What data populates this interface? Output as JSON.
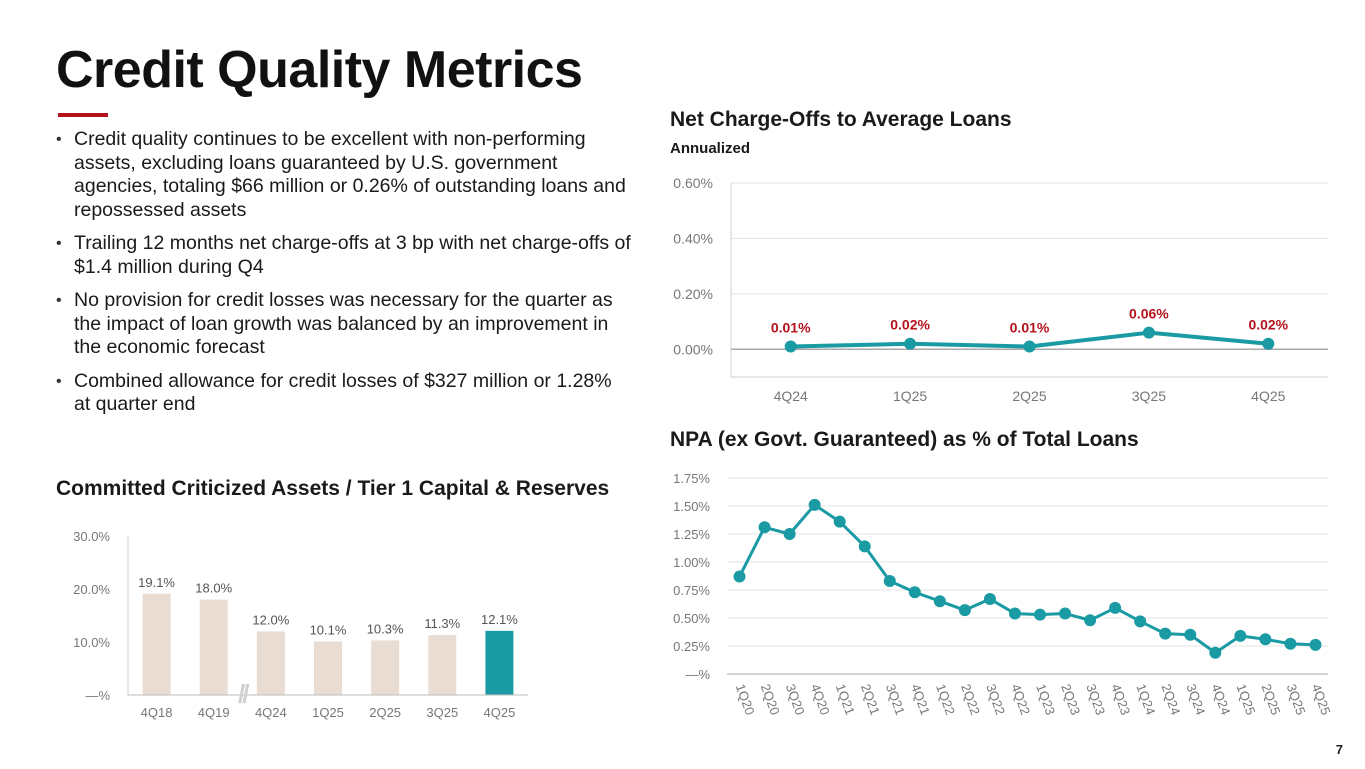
{
  "page": {
    "title": "Credit Quality Metrics",
    "page_number": "7"
  },
  "colors": {
    "accent_red": "#b5121b",
    "teal": "#1a9aa3",
    "beige": "#e9ddd3",
    "label_red": "#b5121b",
    "axis_gray": "#777777"
  },
  "bullets": [
    "Credit quality continues to be excellent with non-performing assets, excluding loans guaranteed by U.S. government agencies, totaling $66 million or 0.26% of outstanding loans and repossessed assets",
    "Trailing 12 months net charge-offs at 3 bp with net charge-offs of $1.4 million during Q4",
    "No provision for credit losses was necessary for the quarter as the impact of loan growth was balanced by an improvement in the economic forecast",
    "Combined allowance for credit losses of $327 million or 1.28% at quarter end"
  ],
  "chart_data": [
    {
      "id": "nco",
      "type": "line",
      "title": "Net Charge-Offs to Average Loans",
      "subtitle": "Annualized",
      "categories": [
        "4Q24",
        "1Q25",
        "2Q25",
        "3Q25",
        "4Q25"
      ],
      "values": [
        0.01,
        0.02,
        0.01,
        0.06,
        0.02
      ],
      "data_labels": [
        "0.01%",
        "0.02%",
        "0.01%",
        "0.06%",
        "0.02%"
      ],
      "ylim": [
        -0.1,
        0.6
      ],
      "yticks": [
        0.0,
        0.2,
        0.4,
        0.6
      ],
      "ytick_labels": [
        "0.00%",
        "0.20%",
        "0.40%",
        "0.60%"
      ],
      "grid": true
    },
    {
      "id": "npa",
      "type": "line",
      "title": "NPA (ex Govt. Guaranteed) as % of Total Loans",
      "categories": [
        "1Q20",
        "2Q20",
        "3Q20",
        "4Q20",
        "1Q21",
        "2Q21",
        "3Q21",
        "4Q21",
        "1Q22",
        "2Q22",
        "3Q22",
        "4Q22",
        "1Q23",
        "2Q23",
        "3Q23",
        "4Q23",
        "1Q24",
        "2Q24",
        "3Q24",
        "4Q24",
        "1Q25",
        "2Q25",
        "3Q25",
        "4Q25"
      ],
      "values": [
        0.87,
        1.31,
        1.25,
        1.51,
        1.36,
        1.14,
        0.83,
        0.73,
        0.65,
        0.57,
        0.67,
        0.54,
        0.53,
        0.54,
        0.48,
        0.59,
        0.47,
        0.36,
        0.35,
        0.19,
        0.34,
        0.31,
        0.27,
        0.26
      ],
      "ylim": [
        0,
        1.75
      ],
      "yticks": [
        0,
        0.25,
        0.5,
        0.75,
        1.0,
        1.25,
        1.5,
        1.75
      ],
      "ytick_labels": [
        "—%",
        "0.25%",
        "0.50%",
        "0.75%",
        "1.00%",
        "1.25%",
        "1.50%",
        "1.75%"
      ],
      "grid": true
    },
    {
      "id": "cca",
      "type": "bar",
      "title": "Committed Criticized Assets / Tier 1 Capital & Reserves",
      "categories": [
        "4Q18",
        "4Q19",
        "4Q24",
        "1Q25",
        "2Q25",
        "3Q25",
        "4Q25"
      ],
      "values": [
        19.1,
        18.0,
        12.0,
        10.1,
        10.3,
        11.3,
        12.1
      ],
      "data_labels": [
        "19.1%",
        "18.0%",
        "12.0%",
        "10.1%",
        "10.3%",
        "11.3%",
        "12.1%"
      ],
      "highlight_index": 6,
      "axis_break": "//",
      "ylim": [
        0,
        30
      ],
      "yticks": [
        0,
        10,
        20,
        30
      ],
      "ytick_labels": [
        "—%",
        "10.0%",
        "20.0%",
        "30.0%"
      ],
      "grid": false
    }
  ]
}
